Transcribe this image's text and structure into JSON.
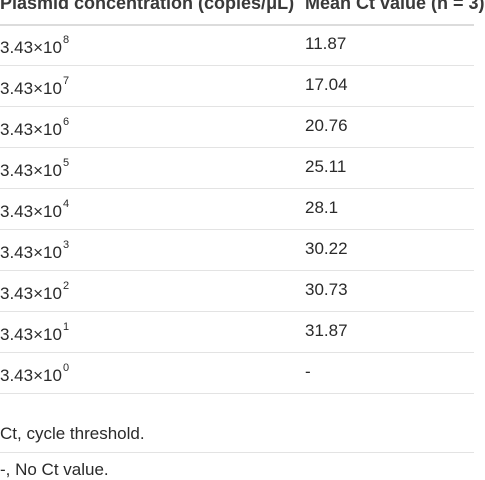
{
  "table": {
    "headers": {
      "concentration": "Plasmid concentration (copies/μL)",
      "ct": "Mean Ct value (n = 3)"
    },
    "rows": [
      {
        "base": "3.43×10",
        "exp": "8",
        "ct": "11.87"
      },
      {
        "base": "3.43×10",
        "exp": "7",
        "ct": "17.04"
      },
      {
        "base": "3.43×10",
        "exp": "6",
        "ct": "20.76"
      },
      {
        "base": "3.43×10",
        "exp": "5",
        "ct": "25.11"
      },
      {
        "base": "3.43×10",
        "exp": "4",
        "ct": "28.1"
      },
      {
        "base": "3.43×10",
        "exp": "3",
        "ct": "30.22"
      },
      {
        "base": "3.43×10",
        "exp": "2",
        "ct": "30.73"
      },
      {
        "base": "3.43×10",
        "exp": "1",
        "ct": "31.87"
      },
      {
        "base": "3.43×10",
        "exp": "0",
        "ct": "-"
      }
    ]
  },
  "footnotes": {
    "abbreviation": "Ct, cycle threshold.",
    "dash": "-, No Ct value."
  }
}
